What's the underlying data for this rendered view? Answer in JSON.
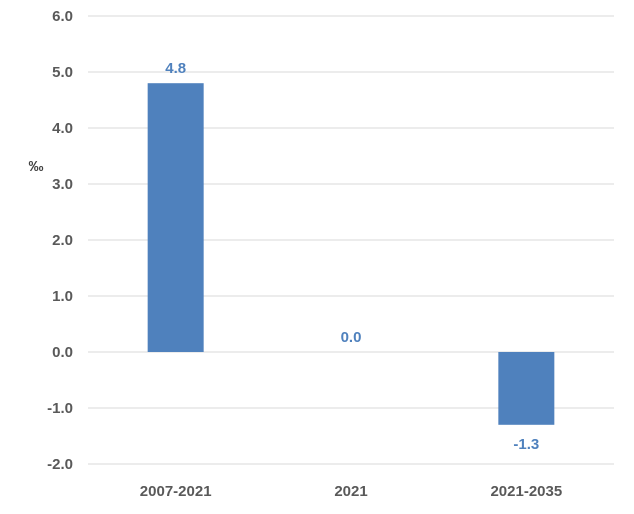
{
  "chart_data": {
    "type": "bar",
    "title": "",
    "xlabel": "",
    "ylabel": "‰",
    "categories": [
      "2007-2021",
      "2021",
      "2021-2035"
    ],
    "series": [
      {
        "values": [
          4.8,
          0.0,
          -1.3
        ]
      }
    ],
    "data_labels": [
      "4.8",
      "0.0",
      "-1.3"
    ],
    "ylim": [
      -2.0,
      6.0
    ],
    "yticks": [
      6.0,
      5.0,
      4.0,
      3.0,
      2.0,
      1.0,
      0.0,
      -1.0,
      -2.0
    ],
    "ytick_labels": [
      "6.0",
      "5.0",
      "4.0",
      "3.0",
      "2.0",
      "1.0",
      "0.0",
      "-1.0",
      "-2.0"
    ],
    "grid": true,
    "legend": "none",
    "colors": {
      "bar": "#4f81bd",
      "data_label": "#4f81bd",
      "grid": "#d9d9d9",
      "tick_text": "#595959"
    }
  }
}
